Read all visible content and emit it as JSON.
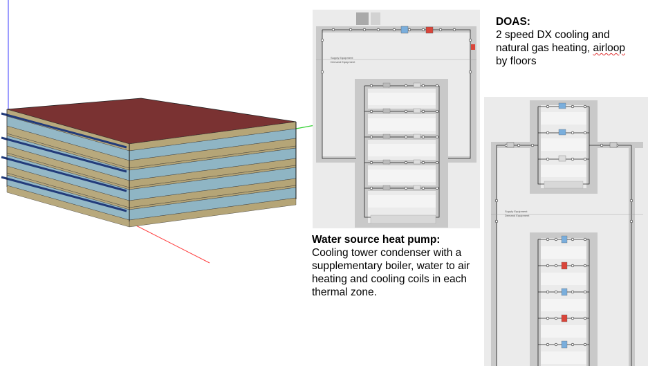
{
  "wshp_caption": {
    "title": "Water source heat pump:",
    "body": "Cooling tower condenser with a supplementary boiler, water to air heating and cooling coils in each thermal zone."
  },
  "doas_caption": {
    "title": "DOAS:",
    "line1": "2 speed DX cooling and",
    "line2_pre": "natural gas heating, ",
    "line2_flagged": "airloop",
    "line3": "by floors"
  },
  "wshp_diagram": {
    "supply_label": "Supply Equipment",
    "demand_label": "Demand Equipment",
    "branch_count": 5
  },
  "doas_diagram": {
    "supply_label": "Supply Equipment",
    "demand_label": "Demand Equipment",
    "supply_branch_count": 3,
    "demand_branch_count": 5
  },
  "colors": {
    "roof": "#7a3232",
    "floor_band": "#b5a577",
    "glazing": "#8fb5c4",
    "frame_blue": "#223b7a",
    "pipe_gray": "#c9c9c9",
    "heating_coil": "#d9453a",
    "cooling_coil": "#7aaedc"
  }
}
